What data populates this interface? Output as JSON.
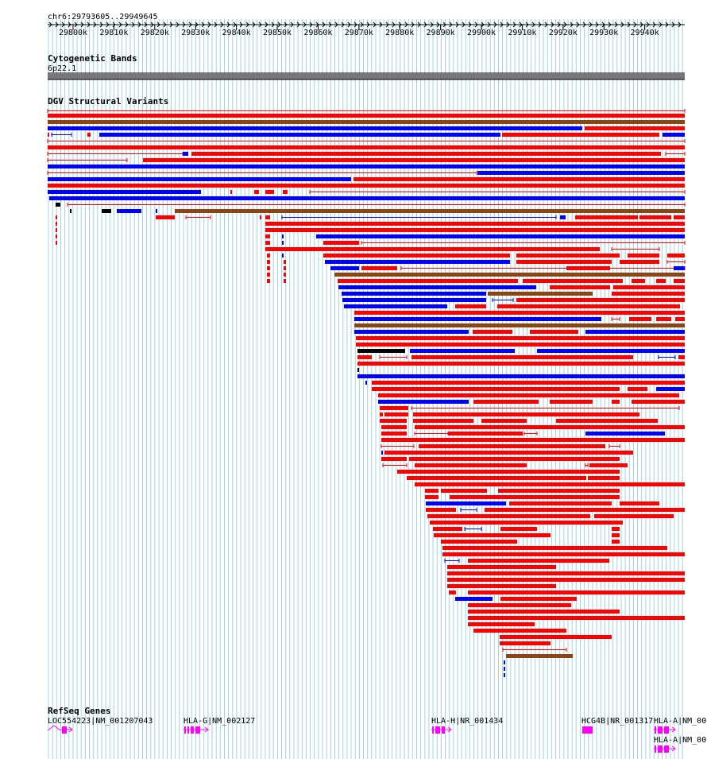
{
  "header": {
    "locus": "chr6:29793605..29949645",
    "ticks": [
      "29800k",
      "29810k",
      "29820k",
      "29830k",
      "29840k",
      "29850k",
      "29860k",
      "29870k",
      "29880k",
      "29890k",
      "29900k",
      "29910k",
      "29920k",
      "29930k",
      "29940k"
    ]
  },
  "tracks": {
    "cytoband": {
      "title": "Cytogenetic Bands",
      "band": "6p22.1"
    },
    "dgv": {
      "title": "DGV Structural Variants"
    },
    "refseq": {
      "title": "RefSeq Genes",
      "genes": [
        {
          "label": "LOC554223|NM_001207043",
          "color": "#ff00ff"
        },
        {
          "label": "HLA-G|NM_002127",
          "color": "#ff00ff"
        },
        {
          "label": "HLA-H|NR_001434",
          "color": "#ff00ff"
        },
        {
          "label": "HCG4B|NR_001317",
          "color": "#ff00ff"
        },
        {
          "label": "HLA-A|NM_00",
          "color": "#ff00ff"
        },
        {
          "label": "HLA-A|NM_00",
          "color": "#ff00ff"
        }
      ]
    }
  },
  "colors": {
    "loss": "#ff0000",
    "gain": "#0000ff",
    "gainloss": "#8b4513",
    "inversion": "#000000",
    "grid": "#9fd3df"
  }
}
